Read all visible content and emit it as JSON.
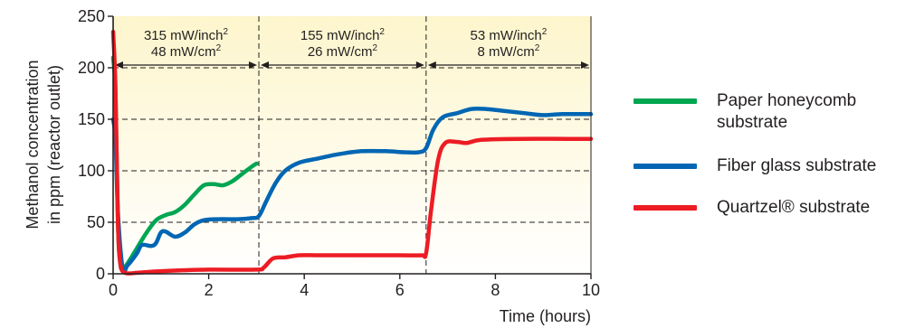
{
  "chart_data": {
    "type": "line",
    "xlabel": "Time (hours)",
    "ylabel_lines": [
      "Methanol concentration",
      "in ppm (reactor outlet)"
    ],
    "xlim": [
      0,
      10
    ],
    "ylim": [
      0,
      250
    ],
    "x_ticks": [
      "0",
      "2",
      "4",
      "6",
      "8",
      "10"
    ],
    "y_ticks": [
      "0",
      "50",
      "100",
      "150",
      "200",
      "250"
    ],
    "grid": "dashed horizontal lines at 50, 100, 150, 200",
    "region_boundaries": [
      3.05,
      6.55
    ],
    "regions": [
      {
        "line1": "315 mW/inch",
        "line1_sup": "2",
        "line2": "48 mW/cm",
        "line2_sup": "2",
        "x_start": 0,
        "x_end": 3.05
      },
      {
        "line1": "155 mW/inch",
        "line1_sup": "2",
        "line2": "26 mW/cm",
        "line2_sup": "2",
        "x_start": 3.05,
        "x_end": 6.55
      },
      {
        "line1": "53 mW/inch",
        "line1_sup": "2",
        "line2": "8 mW/cm",
        "line2_sup": "2",
        "x_start": 6.55,
        "x_end": 10
      }
    ],
    "series": [
      {
        "name": "Paper honeycomb substrate",
        "color": "#00a651",
        "points": [
          [
            0,
            210
          ],
          [
            0.05,
            175
          ],
          [
            0.1,
            50
          ],
          [
            0.15,
            10
          ],
          [
            0.2,
            5
          ],
          [
            0.3,
            10
          ],
          [
            0.5,
            25
          ],
          [
            0.7,
            40
          ],
          [
            0.9,
            52
          ],
          [
            1.1,
            57
          ],
          [
            1.3,
            60
          ],
          [
            1.5,
            67
          ],
          [
            1.7,
            77
          ],
          [
            1.9,
            86
          ],
          [
            2.1,
            87
          ],
          [
            2.3,
            86
          ],
          [
            2.5,
            90
          ],
          [
            2.7,
            97
          ],
          [
            2.9,
            104
          ],
          [
            3.0,
            107
          ]
        ]
      },
      {
        "name": "Fiber glass substrate",
        "color": "#0066b3",
        "points": [
          [
            0,
            150
          ],
          [
            0.05,
            130
          ],
          [
            0.1,
            60
          ],
          [
            0.2,
            5
          ],
          [
            0.3,
            8
          ],
          [
            0.5,
            20
          ],
          [
            0.6,
            28
          ],
          [
            0.8,
            27
          ],
          [
            0.9,
            30
          ],
          [
            1.0,
            40
          ],
          [
            1.1,
            41
          ],
          [
            1.3,
            36
          ],
          [
            1.5,
            40
          ],
          [
            1.7,
            48
          ],
          [
            1.9,
            52
          ],
          [
            2.2,
            53
          ],
          [
            2.6,
            53
          ],
          [
            2.9,
            54
          ],
          [
            3.05,
            56
          ],
          [
            3.2,
            70
          ],
          [
            3.4,
            88
          ],
          [
            3.6,
            100
          ],
          [
            3.9,
            108
          ],
          [
            4.3,
            112
          ],
          [
            4.7,
            116
          ],
          [
            5.2,
            119
          ],
          [
            5.7,
            119
          ],
          [
            6.1,
            118
          ],
          [
            6.4,
            118
          ],
          [
            6.55,
            122
          ],
          [
            6.7,
            140
          ],
          [
            6.9,
            152
          ],
          [
            7.2,
            156
          ],
          [
            7.5,
            160
          ],
          [
            7.8,
            160
          ],
          [
            8.2,
            158
          ],
          [
            8.6,
            156
          ],
          [
            9.0,
            154
          ],
          [
            9.4,
            155
          ],
          [
            10,
            155
          ]
        ]
      },
      {
        "name": "Quartzel® substrate",
        "color": "#ed1c24",
        "points": [
          [
            0,
            235
          ],
          [
            0.05,
            180
          ],
          [
            0.1,
            50
          ],
          [
            0.15,
            10
          ],
          [
            0.25,
            1
          ],
          [
            0.5,
            1
          ],
          [
            0.8,
            2
          ],
          [
            1.2,
            3
          ],
          [
            2.0,
            4
          ],
          [
            3.0,
            4
          ],
          [
            3.15,
            6
          ],
          [
            3.35,
            15
          ],
          [
            3.6,
            16
          ],
          [
            3.9,
            18
          ],
          [
            4.3,
            18
          ],
          [
            5.0,
            18
          ],
          [
            6.0,
            18
          ],
          [
            6.45,
            18
          ],
          [
            6.55,
            20
          ],
          [
            6.65,
            60
          ],
          [
            6.8,
            110
          ],
          [
            6.95,
            127
          ],
          [
            7.2,
            128
          ],
          [
            7.4,
            127
          ],
          [
            7.7,
            130
          ],
          [
            8.5,
            131
          ],
          [
            9.5,
            131
          ],
          [
            10,
            131
          ]
        ]
      }
    ]
  }
}
